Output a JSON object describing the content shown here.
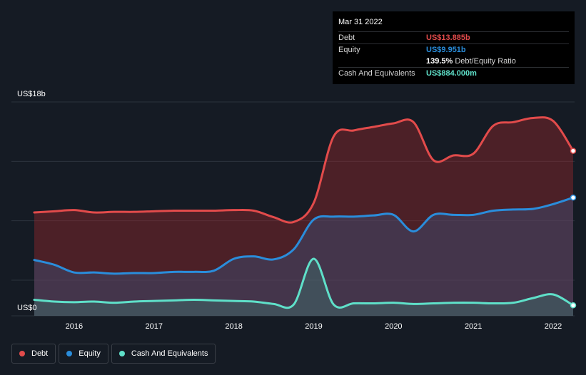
{
  "colors": {
    "debt": "#e24b4b",
    "equity": "#2a8ddb",
    "cash": "#5fe0c9",
    "background": "#151b24"
  },
  "tooltip": {
    "date": "Mar 31 2022",
    "debt_label": "Debt",
    "debt_value": "US$13.885b",
    "equity_label": "Equity",
    "equity_value": "US$9.951b",
    "ratio_value": "139.5%",
    "ratio_label": "Debt/Equity Ratio",
    "cash_label": "Cash And Equivalents",
    "cash_value": "US$884.000m"
  },
  "legend": [
    {
      "label": "Debt",
      "color": "#e24b4b"
    },
    {
      "label": "Equity",
      "color": "#2a8ddb"
    },
    {
      "label": "Cash And Equivalents",
      "color": "#5fe0c9"
    }
  ],
  "chart_data": {
    "type": "area",
    "y_top_label": "US$18b",
    "y_bottom_label": "US$0",
    "ylim": [
      0,
      18
    ],
    "xlim": [
      2015.5,
      2022.25
    ],
    "x_ticks": [
      "2016",
      "2017",
      "2018",
      "2019",
      "2020",
      "2021",
      "2022"
    ],
    "x_tick_values": [
      2016,
      2017,
      2018,
      2019,
      2020,
      2021,
      2022
    ],
    "grid": true,
    "legend_position": "bottom-left",
    "series": [
      {
        "name": "Debt",
        "color": "#e24b4b",
        "values": [
          [
            2015.5,
            8.7
          ],
          [
            2015.75,
            8.8
          ],
          [
            2016.0,
            8.9
          ],
          [
            2016.25,
            8.7
          ],
          [
            2016.5,
            8.75
          ],
          [
            2016.75,
            8.75
          ],
          [
            2017.0,
            8.8
          ],
          [
            2017.25,
            8.85
          ],
          [
            2017.5,
            8.85
          ],
          [
            2017.75,
            8.85
          ],
          [
            2018.0,
            8.9
          ],
          [
            2018.25,
            8.85
          ],
          [
            2018.5,
            8.3
          ],
          [
            2018.75,
            7.9
          ],
          [
            2019.0,
            9.5
          ],
          [
            2019.25,
            15.1
          ],
          [
            2019.5,
            15.6
          ],
          [
            2019.75,
            15.9
          ],
          [
            2020.0,
            16.2
          ],
          [
            2020.25,
            16.3
          ],
          [
            2020.5,
            13.1
          ],
          [
            2020.75,
            13.5
          ],
          [
            2021.0,
            13.65
          ],
          [
            2021.25,
            16.0
          ],
          [
            2021.5,
            16.3
          ],
          [
            2021.75,
            16.65
          ],
          [
            2022.0,
            16.4
          ],
          [
            2022.25,
            13.885
          ]
        ]
      },
      {
        "name": "Equity",
        "color": "#2a8ddb",
        "values": [
          [
            2015.5,
            4.7
          ],
          [
            2015.75,
            4.3
          ],
          [
            2016.0,
            3.65
          ],
          [
            2016.25,
            3.65
          ],
          [
            2016.5,
            3.55
          ],
          [
            2016.75,
            3.6
          ],
          [
            2017.0,
            3.6
          ],
          [
            2017.25,
            3.7
          ],
          [
            2017.5,
            3.7
          ],
          [
            2017.75,
            3.8
          ],
          [
            2018.0,
            4.8
          ],
          [
            2018.25,
            5.0
          ],
          [
            2018.5,
            4.75
          ],
          [
            2018.75,
            5.6
          ],
          [
            2019.0,
            8.1
          ],
          [
            2019.25,
            8.35
          ],
          [
            2019.5,
            8.35
          ],
          [
            2019.75,
            8.45
          ],
          [
            2020.0,
            8.5
          ],
          [
            2020.25,
            7.1
          ],
          [
            2020.5,
            8.5
          ],
          [
            2020.75,
            8.5
          ],
          [
            2021.0,
            8.5
          ],
          [
            2021.25,
            8.85
          ],
          [
            2021.5,
            8.95
          ],
          [
            2021.75,
            9.0
          ],
          [
            2022.0,
            9.4
          ],
          [
            2022.25,
            9.951
          ]
        ]
      },
      {
        "name": "Cash And Equivalents",
        "color": "#5fe0c9",
        "values": [
          [
            2015.5,
            1.35
          ],
          [
            2015.75,
            1.2
          ],
          [
            2016.0,
            1.15
          ],
          [
            2016.25,
            1.2
          ],
          [
            2016.5,
            1.1
          ],
          [
            2016.75,
            1.2
          ],
          [
            2017.0,
            1.25
          ],
          [
            2017.25,
            1.3
          ],
          [
            2017.5,
            1.35
          ],
          [
            2017.75,
            1.3
          ],
          [
            2018.0,
            1.25
          ],
          [
            2018.25,
            1.2
          ],
          [
            2018.5,
            1.0
          ],
          [
            2018.75,
            0.95
          ],
          [
            2019.0,
            4.8
          ],
          [
            2019.25,
            0.95
          ],
          [
            2019.5,
            1.05
          ],
          [
            2019.75,
            1.05
          ],
          [
            2020.0,
            1.1
          ],
          [
            2020.25,
            1.0
          ],
          [
            2020.5,
            1.05
          ],
          [
            2020.75,
            1.1
          ],
          [
            2021.0,
            1.1
          ],
          [
            2021.25,
            1.05
          ],
          [
            2021.5,
            1.1
          ],
          [
            2021.75,
            1.5
          ],
          [
            2022.0,
            1.8
          ],
          [
            2022.25,
            0.884
          ]
        ]
      }
    ]
  }
}
